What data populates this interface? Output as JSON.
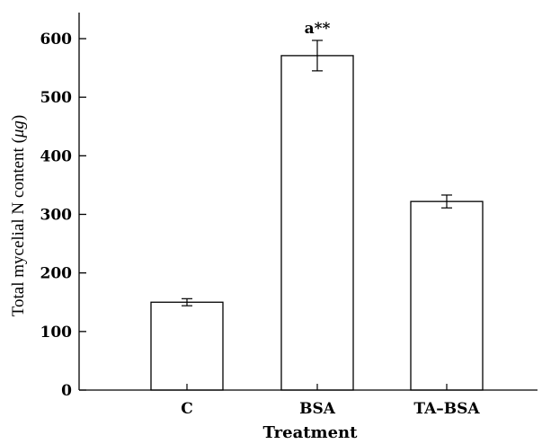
{
  "chart_data": {
    "type": "bar",
    "categories": [
      "C",
      "BSA",
      "TA–BSA"
    ],
    "values": [
      150,
      571,
      322
    ],
    "errors": [
      6,
      26,
      11
    ],
    "annotations": [
      {
        "category": "BSA",
        "text": "a**"
      }
    ],
    "xlabel": "Treatment",
    "ylabel": {
      "prefix": "Total mycelial N content (",
      "italic": "μg",
      "suffix": ")"
    },
    "ylim": [
      0,
      600
    ],
    "yticks": [
      0,
      100,
      200,
      300,
      400,
      500,
      600
    ],
    "grid": false,
    "legend": false,
    "colors": {
      "bar_fill": "#ffffff",
      "bar_stroke": "#000000",
      "axis": "#000000"
    }
  }
}
